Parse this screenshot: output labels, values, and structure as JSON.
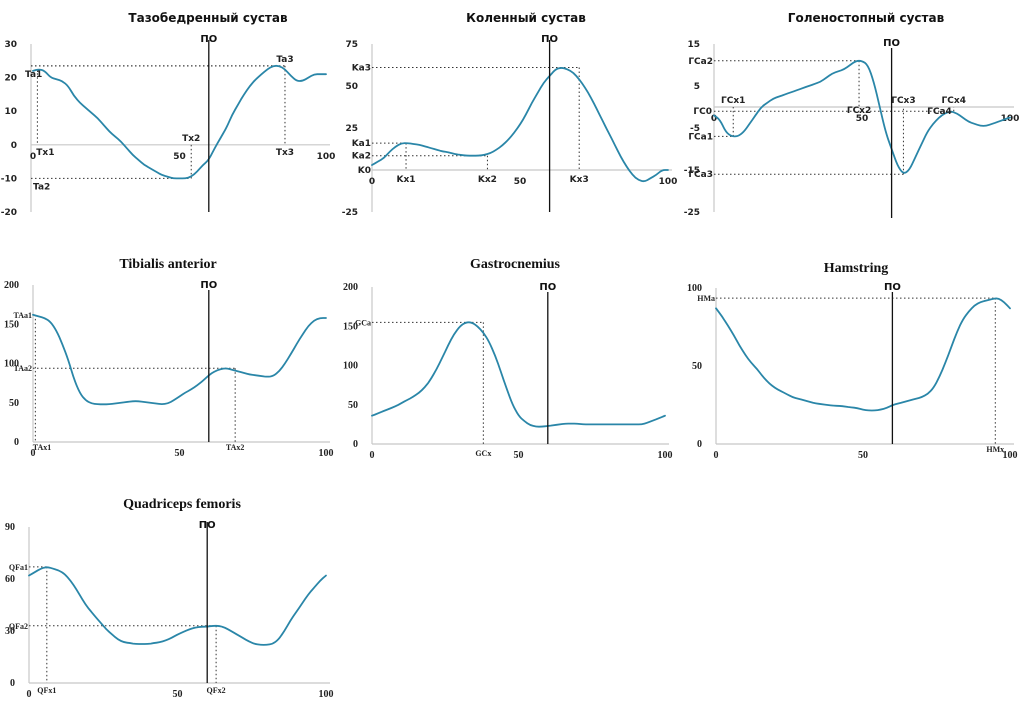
{
  "line_color": "#2a86a8",
  "po_label": "ПО",
  "chart_data": [
    {
      "id": "hip",
      "type": "line",
      "title": "Тазобедренный сустав",
      "title_style": "sans",
      "xlim": [
        0,
        100
      ],
      "ylim": [
        -20,
        30
      ],
      "x_ticks": [
        0,
        50,
        100
      ],
      "y_ticks": [
        30,
        20,
        10,
        0,
        -10,
        -20
      ],
      "po_x": 60,
      "x": [
        0,
        2,
        4,
        6,
        8,
        10,
        12,
        14,
        16,
        18,
        20,
        22,
        24,
        26,
        28,
        30,
        32,
        34,
        36,
        38,
        40,
        42,
        44,
        46,
        48,
        50,
        52,
        54,
        56,
        58,
        60,
        62,
        64,
        66,
        68,
        70,
        72,
        74,
        76,
        78,
        80,
        82,
        84,
        86,
        88,
        90,
        92,
        94,
        96,
        98,
        100
      ],
      "y": [
        22,
        22.5,
        22,
        20,
        19.5,
        19,
        17.5,
        14.5,
        12.5,
        11,
        9.5,
        8,
        6,
        4,
        2.5,
        1,
        -1,
        -3,
        -4.5,
        -6,
        -7,
        -8,
        -9,
        -9.5,
        -10,
        -10,
        -10,
        -9.5,
        -8,
        -6,
        -4.5,
        -1,
        2,
        5,
        9,
        12,
        15,
        17.5,
        19.5,
        21,
        22.5,
        23.5,
        23.5,
        22.5,
        20.5,
        19,
        19,
        20,
        21,
        21,
        21
      ],
      "annotations": [
        {
          "label": "Ta1",
          "axis": "y",
          "value": 22.5
        },
        {
          "label": "Tx1",
          "axis": "x",
          "value": 1.5
        },
        {
          "label": "Ta2",
          "axis": "y",
          "value": -10
        },
        {
          "label": "Tx2",
          "axis": "x",
          "value": 54
        },
        {
          "label": "Ta3",
          "axis": "y",
          "value": 23.5
        },
        {
          "label": "Tx3",
          "axis": "x",
          "value": 86
        }
      ],
      "guides": [
        {
          "x": 1.5,
          "y": 22.5,
          "h": false,
          "v": true
        },
        {
          "x": 54,
          "y": -10,
          "h": true,
          "v": true
        },
        {
          "x": 86,
          "y": 23.5,
          "h": true,
          "v": true
        }
      ]
    },
    {
      "id": "knee",
      "type": "line",
      "title": "Коленный сустав",
      "title_style": "sans",
      "xlim": [
        0,
        100
      ],
      "ylim": [
        -25,
        75
      ],
      "x_ticks": [
        0,
        50,
        100
      ],
      "y_ticks": [
        75,
        50,
        25,
        -25
      ],
      "po_x": 60,
      "x": [
        0,
        2,
        4,
        6,
        8,
        10,
        12,
        14,
        16,
        18,
        20,
        22,
        24,
        26,
        28,
        30,
        32,
        34,
        36,
        38,
        40,
        42,
        44,
        46,
        48,
        50,
        52,
        54,
        56,
        58,
        60,
        62,
        64,
        66,
        68,
        70,
        72,
        74,
        76,
        78,
        80,
        82,
        84,
        86,
        88,
        90,
        92,
        94,
        96,
        98,
        100
      ],
      "y": [
        3,
        5,
        7,
        11,
        14,
        16,
        16,
        15.5,
        15,
        14,
        13,
        12,
        11,
        10.5,
        9.5,
        9,
        8.5,
        8.5,
        8.5,
        9,
        10,
        12,
        14.5,
        18,
        22,
        27,
        33,
        40,
        46,
        52,
        56,
        60,
        61,
        60,
        58,
        54,
        49,
        43,
        36,
        29,
        22,
        15,
        8,
        2,
        -3,
        -6,
        -7,
        -5,
        -3,
        0,
        0
      ],
      "annotations": [
        {
          "label": "K0",
          "axis": "y",
          "value": 0
        },
        {
          "label": "Ka1",
          "axis": "y",
          "value": 16
        },
        {
          "label": "Ka2",
          "axis": "y",
          "value": 8.5
        },
        {
          "label": "Ka3",
          "axis": "y",
          "value": 61
        },
        {
          "label": "Kx1",
          "axis": "x",
          "value": 11.5
        },
        {
          "label": "Kx2",
          "axis": "x",
          "value": 39
        },
        {
          "label": "Kx3",
          "axis": "x",
          "value": 70
        }
      ],
      "guides": [
        {
          "x": 11.5,
          "y": 16,
          "h": true,
          "v": true
        },
        {
          "x": 39,
          "y": 8.5,
          "h": true,
          "v": true
        },
        {
          "x": 70,
          "y": 61,
          "h": true,
          "v": true
        }
      ]
    },
    {
      "id": "ankle",
      "type": "line",
      "title": "Голеностопный сустав",
      "title_style": "sans",
      "xlim": [
        0,
        100
      ],
      "ylim": [
        -25,
        15
      ],
      "x_ticks": [
        0,
        50,
        100
      ],
      "y_ticks": [
        15,
        5,
        -5,
        -15,
        -25
      ],
      "po_x": 60,
      "x": [
        0,
        2,
        4,
        6,
        8,
        10,
        12,
        14,
        16,
        18,
        20,
        22,
        24,
        26,
        28,
        30,
        32,
        34,
        36,
        38,
        40,
        42,
        44,
        46,
        48,
        50,
        52,
        54,
        56,
        58,
        60,
        62,
        64,
        66,
        68,
        70,
        72,
        74,
        76,
        78,
        80,
        82,
        84,
        86,
        88,
        90,
        92,
        94,
        96,
        98,
        100
      ],
      "y": [
        -2,
        -3,
        -6,
        -7,
        -7,
        -6,
        -4,
        -2,
        0,
        1,
        2,
        2.5,
        3,
        3.5,
        4,
        4.5,
        5,
        5.5,
        6,
        7,
        8,
        8.5,
        9,
        10,
        11,
        11,
        10,
        6,
        0,
        -6,
        -10,
        -14,
        -16,
        -15,
        -12,
        -9,
        -6,
        -4,
        -2.5,
        -1.5,
        -1,
        -1.5,
        -2.5,
        -3.5,
        -4,
        -4.5,
        -4.5,
        -4,
        -3.5,
        -3,
        -2.5
      ],
      "annotations": [
        {
          "label": "ГС0",
          "axis": "y",
          "value": -1
        },
        {
          "label": "ГСa1",
          "axis": "y",
          "value": -7
        },
        {
          "label": "ГСa2",
          "axis": "y",
          "value": 11
        },
        {
          "label": "ГСa3",
          "axis": "y",
          "value": -16
        },
        {
          "label": "ГСa4",
          "axis": "y",
          "value": -1
        },
        {
          "label": "ГСx1",
          "axis": "x",
          "value": 6.5
        },
        {
          "label": "ГСx2",
          "axis": "x",
          "value": 49
        },
        {
          "label": "ГСx3",
          "axis": "x",
          "value": 64
        },
        {
          "label": "ГСx4",
          "axis": "x",
          "value": 81
        }
      ],
      "guides": [
        {
          "x": 6.5,
          "y": -7,
          "h": true,
          "v": true
        },
        {
          "x": 49,
          "y": 11,
          "h": true,
          "v": true
        },
        {
          "x": 64,
          "y": -16,
          "h": true,
          "v": true
        },
        {
          "x": 81,
          "y": -1,
          "h": true,
          "v": true
        }
      ]
    },
    {
      "id": "tibialis",
      "type": "line",
      "title": "Tibialis anterior",
      "title_style": "serif",
      "xlim": [
        0,
        100
      ],
      "ylim": [
        0,
        200
      ],
      "x_ticks": [
        0,
        50,
        100
      ],
      "y_ticks": [
        200,
        150,
        100,
        50,
        0
      ],
      "po_x": 60,
      "x": [
        0,
        2,
        4,
        6,
        8,
        10,
        12,
        14,
        16,
        18,
        20,
        22,
        24,
        26,
        28,
        30,
        32,
        34,
        36,
        38,
        40,
        42,
        44,
        46,
        48,
        50,
        52,
        54,
        56,
        58,
        60,
        62,
        64,
        66,
        68,
        70,
        72,
        74,
        76,
        78,
        80,
        82,
        84,
        86,
        88,
        90,
        92,
        94,
        96,
        98,
        100
      ],
      "y": [
        162,
        160,
        158,
        153,
        142,
        125,
        105,
        80,
        62,
        53,
        49,
        48,
        48,
        48,
        49,
        50,
        51,
        52,
        52,
        51,
        50,
        49,
        48,
        49,
        53,
        58,
        63,
        67,
        72,
        78,
        85,
        90,
        93,
        94,
        92,
        90,
        88,
        86,
        85,
        84,
        83,
        84,
        90,
        100,
        112,
        125,
        137,
        148,
        155,
        158,
        158
      ],
      "annotations": [
        {
          "label": "TAa1",
          "axis": "y",
          "value": 162
        },
        {
          "label": "TAa2",
          "axis": "y",
          "value": 94
        },
        {
          "label": "TAx1",
          "axis": "x",
          "value": 0
        },
        {
          "label": "TAx2",
          "axis": "x",
          "value": 69
        }
      ],
      "guides": [
        {
          "x": 0.8,
          "y": 162,
          "h": false,
          "v": true
        },
        {
          "x": 69,
          "y": 94,
          "h": true,
          "v": true
        }
      ]
    },
    {
      "id": "gastrocnemius",
      "type": "line",
      "title": "Gastrocnemius",
      "title_style": "serif",
      "xlim": [
        0,
        100
      ],
      "ylim": [
        0,
        200
      ],
      "x_ticks": [
        0,
        50,
        100
      ],
      "y_ticks": [
        200,
        150,
        100,
        50,
        0
      ],
      "po_x": 60,
      "x": [
        0,
        2,
        4,
        6,
        8,
        10,
        12,
        14,
        16,
        18,
        20,
        22,
        24,
        26,
        28,
        30,
        32,
        34,
        36,
        38,
        40,
        42,
        44,
        46,
        48,
        50,
        52,
        54,
        56,
        58,
        60,
        62,
        64,
        66,
        68,
        70,
        72,
        74,
        76,
        78,
        80,
        82,
        84,
        86,
        88,
        90,
        92,
        94,
        96,
        98,
        100
      ],
      "y": [
        36,
        39,
        42,
        45,
        48,
        52,
        56,
        60,
        65,
        72,
        82,
        95,
        110,
        126,
        140,
        150,
        155,
        155,
        150,
        142,
        130,
        113,
        92,
        70,
        50,
        36,
        29,
        24,
        22,
        22,
        23,
        24,
        25,
        26,
        26,
        26,
        25,
        25,
        25,
        25,
        25,
        25,
        25,
        25,
        25,
        25,
        25,
        27,
        30,
        33,
        36
      ],
      "annotations": [
        {
          "label": "GCa",
          "axis": "y",
          "value": 155
        },
        {
          "label": "GCx",
          "axis": "x",
          "value": 38
        }
      ],
      "guides": [
        {
          "x": 38,
          "y": 155,
          "h": true,
          "v": true
        }
      ]
    },
    {
      "id": "hamstring",
      "type": "line",
      "title": "Hamstring",
      "title_style": "serif",
      "xlim": [
        0,
        100
      ],
      "ylim": [
        0,
        100
      ],
      "x_ticks": [
        0,
        50,
        100
      ],
      "y_ticks": [
        100,
        50,
        0
      ],
      "po_x": 60,
      "x": [
        0,
        2,
        4,
        6,
        8,
        10,
        12,
        14,
        16,
        18,
        20,
        22,
        24,
        26,
        28,
        30,
        32,
        34,
        36,
        38,
        40,
        42,
        44,
        46,
        48,
        50,
        52,
        54,
        56,
        58,
        60,
        62,
        64,
        66,
        68,
        70,
        72,
        74,
        76,
        78,
        80,
        82,
        84,
        86,
        88,
        90,
        92,
        94,
        96,
        98,
        100
      ],
      "y": [
        87,
        82,
        76,
        70,
        63,
        57,
        52,
        48,
        43,
        39,
        36,
        34,
        32,
        30,
        29,
        28,
        27,
        26,
        25.5,
        25,
        24.5,
        24.5,
        24,
        23.5,
        23,
        22,
        21.5,
        21.5,
        22,
        23,
        25,
        26,
        27,
        28,
        29,
        30,
        32,
        36,
        43,
        52,
        62,
        72,
        80,
        85,
        89,
        91,
        92,
        93,
        93.5,
        91,
        87
      ],
      "annotations": [
        {
          "label": "HMa",
          "axis": "y",
          "value": 93.5
        },
        {
          "label": "HMx",
          "axis": "x",
          "value": 95
        }
      ],
      "guides": [
        {
          "x": 95,
          "y": 93.5,
          "h": true,
          "v": true
        }
      ]
    },
    {
      "id": "quadriceps",
      "type": "line",
      "title": "Quadriceps femoris",
      "title_style": "serif",
      "xlim": [
        0,
        100
      ],
      "ylim": [
        0,
        90
      ],
      "x_ticks": [
        0,
        50,
        100
      ],
      "y_ticks": [
        90,
        60,
        30,
        0
      ],
      "po_x": 60,
      "x": [
        0,
        2,
        4,
        6,
        8,
        10,
        12,
        14,
        16,
        18,
        20,
        22,
        24,
        26,
        28,
        30,
        32,
        34,
        36,
        38,
        40,
        42,
        44,
        46,
        48,
        50,
        52,
        54,
        56,
        58,
        60,
        62,
        64,
        66,
        68,
        70,
        72,
        74,
        76,
        78,
        80,
        82,
        84,
        86,
        88,
        90,
        92,
        94,
        96,
        98,
        100
      ],
      "y": [
        62,
        64,
        66,
        67,
        66,
        65,
        63,
        59,
        54,
        48,
        43,
        39,
        35,
        31,
        28,
        25,
        23.5,
        23,
        22.5,
        22.5,
        22.5,
        23,
        23.5,
        24.5,
        26,
        28,
        29.5,
        31,
        32,
        32.5,
        32.5,
        33,
        33,
        32,
        30,
        28,
        26,
        24,
        22.5,
        22,
        22,
        22.5,
        25,
        30,
        36,
        41,
        46,
        51,
        55,
        59,
        62
      ],
      "annotations": [
        {
          "label": "QFa1",
          "axis": "y",
          "value": 67
        },
        {
          "label": "QFa2",
          "axis": "y",
          "value": 33
        },
        {
          "label": "QFx1",
          "axis": "x",
          "value": 6
        },
        {
          "label": "QFx2",
          "axis": "x",
          "value": 63
        }
      ],
      "guides": [
        {
          "x": 6,
          "y": 67,
          "h": true,
          "v": true
        },
        {
          "x": 63,
          "y": 33,
          "h": true,
          "v": true
        }
      ]
    }
  ]
}
